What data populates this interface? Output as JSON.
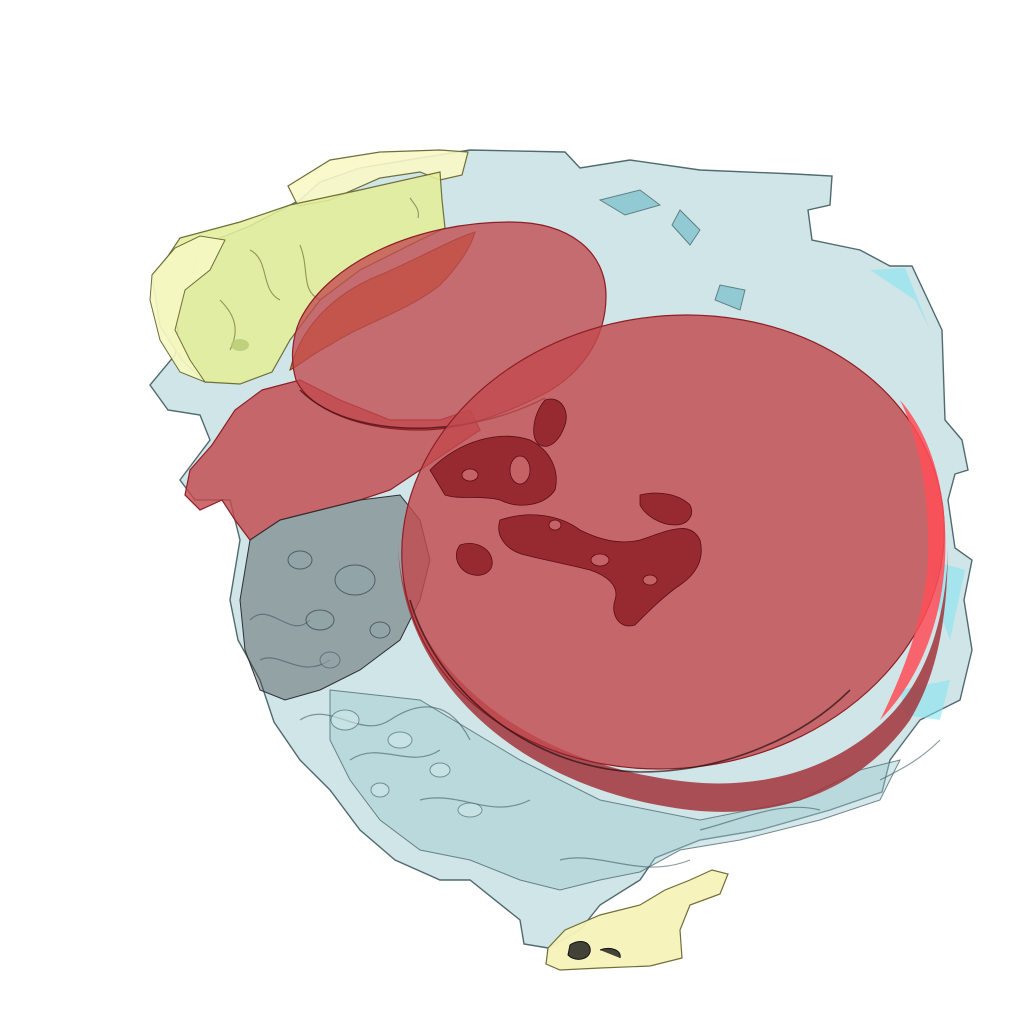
{
  "scene": {
    "background": "#ffffff",
    "colors": {
      "shell_fill": "#a9d0d4",
      "shell_edge": "#3f5b60",
      "shell_cyan": "#7fe3f0",
      "yellow_fill": "#e9f0a3",
      "yellow_pale": "#f8f8c6",
      "yellow_edge": "#6f6f3a",
      "orange_fill": "#c8743a",
      "red_fill": "#c24a4e",
      "red_dark": "#8e1e26",
      "red_bright": "#ff4d57",
      "gray_shadow": "#4a4f55"
    }
  }
}
